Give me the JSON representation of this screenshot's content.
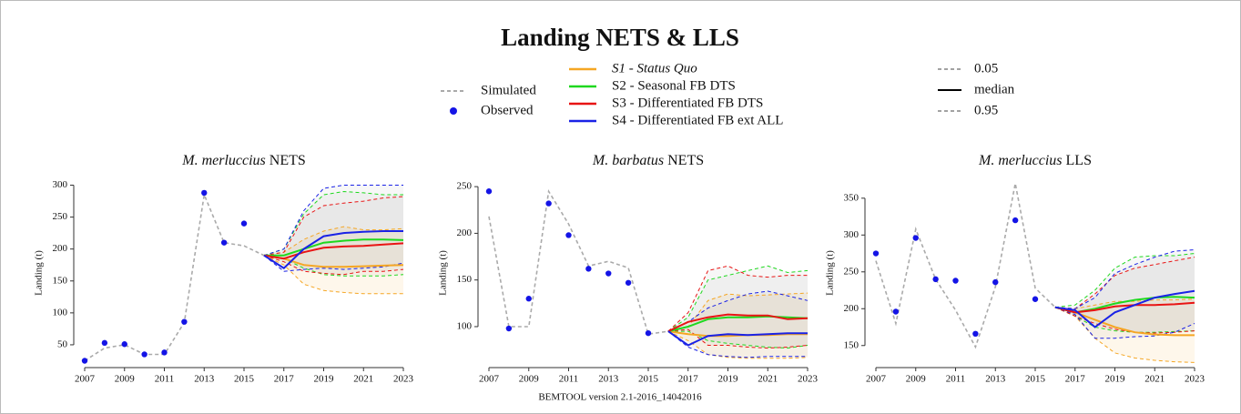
{
  "title": "Landing NETS & LLS",
  "footer": "BEMTOOL version 2.1-2016_14042016",
  "legend": {
    "simulated": "Simulated",
    "simulated_color": "#aaaaaa",
    "observed": "Observed",
    "observed_color": "#1414e6",
    "scenarios": [
      {
        "name": "S1 - Status Quo",
        "color": "#f5a623"
      },
      {
        "name": "S2 - Seasonal FB DTS",
        "color": "#1fd81f"
      },
      {
        "name": "S3 - Differentiated FB DTS",
        "color": "#e81414"
      },
      {
        "name": "S4 - Differentiated FB ext ALL",
        "color": "#1a22e6"
      }
    ],
    "quantiles": [
      "0.05",
      "median",
      "0.95"
    ]
  },
  "chart_data": [
    {
      "type": "line",
      "title": [
        "M. merluccius",
        "NETS"
      ],
      "ylabel": "Landing (t)",
      "x": [
        2007,
        2008,
        2009,
        2010,
        2011,
        2012,
        2013,
        2014,
        2015,
        2016,
        2017,
        2018,
        2019,
        2020,
        2021,
        2022,
        2023
      ],
      "xlim": [
        2007,
        2023
      ],
      "xticks": [
        2007,
        2009,
        2011,
        2013,
        2015,
        2017,
        2019,
        2021,
        2023
      ],
      "ylim": [
        20,
        305
      ],
      "yticks": [
        50,
        100,
        150,
        200,
        250,
        300
      ],
      "simulated": [
        25,
        45,
        50,
        35,
        35,
        85,
        285,
        210,
        205,
        190,
        null,
        null,
        null,
        null,
        null,
        null,
        null
      ],
      "observed": [
        25,
        53,
        51,
        35,
        38,
        86,
        288,
        210,
        240,
        null,
        null,
        null,
        null,
        null,
        null,
        null,
        null
      ],
      "scenarios": [
        {
          "median": [
            null,
            null,
            null,
            null,
            null,
            null,
            null,
            null,
            null,
            190,
            185,
            175,
            172,
            172,
            173,
            174,
            175
          ],
          "low": [
            null,
            null,
            null,
            null,
            null,
            null,
            null,
            null,
            null,
            190,
            175,
            145,
            135,
            132,
            130,
            130,
            130
          ],
          "high": [
            null,
            null,
            null,
            null,
            null,
            null,
            null,
            null,
            null,
            190,
            195,
            215,
            228,
            235,
            230,
            230,
            232
          ]
        },
        {
          "median": [
            null,
            null,
            null,
            null,
            null,
            null,
            null,
            null,
            null,
            190,
            190,
            200,
            210,
            213,
            215,
            215,
            214
          ],
          "low": [
            null,
            null,
            null,
            null,
            null,
            null,
            null,
            null,
            null,
            190,
            185,
            170,
            160,
            158,
            158,
            158,
            160
          ],
          "high": [
            null,
            null,
            null,
            null,
            null,
            null,
            null,
            null,
            null,
            190,
            200,
            255,
            285,
            290,
            288,
            285,
            285
          ]
        },
        {
          "median": [
            null,
            null,
            null,
            null,
            null,
            null,
            null,
            null,
            null,
            190,
            185,
            195,
            202,
            204,
            205,
            207,
            209
          ],
          "low": [
            null,
            null,
            null,
            null,
            null,
            null,
            null,
            null,
            null,
            190,
            180,
            165,
            162,
            160,
            165,
            165,
            168
          ],
          "high": [
            null,
            null,
            null,
            null,
            null,
            null,
            null,
            null,
            null,
            190,
            195,
            250,
            268,
            272,
            275,
            280,
            282
          ]
        },
        {
          "median": [
            null,
            null,
            null,
            null,
            null,
            null,
            null,
            null,
            null,
            190,
            170,
            200,
            220,
            225,
            227,
            228,
            228
          ],
          "low": [
            null,
            null,
            null,
            null,
            null,
            null,
            null,
            null,
            null,
            190,
            165,
            168,
            170,
            168,
            170,
            172,
            178
          ],
          "high": [
            null,
            null,
            null,
            null,
            null,
            null,
            null,
            null,
            null,
            190,
            200,
            260,
            295,
            300,
            300,
            300,
            300
          ]
        }
      ]
    },
    {
      "type": "line",
      "title": [
        "M. barbatus",
        "NETS"
      ],
      "ylabel": "Landing (t)",
      "x": [
        2007,
        2008,
        2009,
        2010,
        2011,
        2012,
        2013,
        2014,
        2015,
        2016,
        2017,
        2018,
        2019,
        2020,
        2021,
        2022,
        2023
      ],
      "xlim": [
        2007,
        2023
      ],
      "xticks": [
        2007,
        2009,
        2011,
        2013,
        2015,
        2017,
        2019,
        2021,
        2023
      ],
      "ylim": [
        60,
        255
      ],
      "yticks": [
        100,
        150,
        200,
        250
      ],
      "simulated": [
        218,
        100,
        100,
        245,
        210,
        165,
        170,
        163,
        92,
        95,
        null,
        null,
        null,
        null,
        null,
        null,
        null
      ],
      "observed": [
        245,
        98,
        130,
        232,
        198,
        162,
        157,
        147,
        93,
        null,
        null,
        null,
        null,
        null,
        null,
        null,
        null
      ],
      "scenarios": [
        {
          "median": [
            null,
            null,
            null,
            null,
            null,
            null,
            null,
            null,
            null,
            95,
            92,
            90,
            90,
            91,
            91,
            92,
            92
          ],
          "low": [
            null,
            null,
            null,
            null,
            null,
            null,
            null,
            null,
            null,
            95,
            85,
            70,
            67,
            66,
            66,
            66,
            67
          ],
          "high": [
            null,
            null,
            null,
            null,
            null,
            null,
            null,
            null,
            null,
            95,
            100,
            128,
            135,
            133,
            134,
            135,
            136
          ]
        },
        {
          "median": [
            null,
            null,
            null,
            null,
            null,
            null,
            null,
            null,
            null,
            95,
            100,
            108,
            110,
            110,
            111,
            110,
            109
          ],
          "low": [
            null,
            null,
            null,
            null,
            null,
            null,
            null,
            null,
            null,
            95,
            95,
            85,
            82,
            80,
            78,
            77,
            80
          ],
          "high": [
            null,
            null,
            null,
            null,
            null,
            null,
            null,
            null,
            null,
            95,
            110,
            150,
            155,
            160,
            165,
            158,
            160
          ]
        },
        {
          "median": [
            null,
            null,
            null,
            null,
            null,
            null,
            null,
            null,
            null,
            95,
            105,
            110,
            113,
            112,
            112,
            108,
            109
          ],
          "low": [
            null,
            null,
            null,
            null,
            null,
            null,
            null,
            null,
            null,
            95,
            97,
            80,
            80,
            78,
            77,
            78,
            80
          ],
          "high": [
            null,
            null,
            null,
            null,
            null,
            null,
            null,
            null,
            null,
            95,
            115,
            160,
            165,
            155,
            153,
            155,
            155
          ]
        },
        {
          "median": [
            null,
            null,
            null,
            null,
            null,
            null,
            null,
            null,
            null,
            95,
            80,
            90,
            92,
            91,
            92,
            93,
            93
          ],
          "low": [
            null,
            null,
            null,
            null,
            null,
            null,
            null,
            null,
            null,
            95,
            78,
            70,
            68,
            67,
            68,
            68,
            68
          ],
          "high": [
            null,
            null,
            null,
            null,
            null,
            null,
            null,
            null,
            null,
            95,
            105,
            120,
            128,
            135,
            138,
            133,
            128
          ]
        }
      ]
    },
    {
      "type": "line",
      "title": [
        "M. merluccius",
        "LLS"
      ],
      "ylabel": "Landing (t)",
      "x": [
        2007,
        2008,
        2009,
        2010,
        2011,
        2012,
        2013,
        2014,
        2015,
        2016,
        2017,
        2018,
        2019,
        2020,
        2021,
        2022,
        2023
      ],
      "xlim": [
        2007,
        2023
      ],
      "xticks": [
        2007,
        2009,
        2011,
        2013,
        2015,
        2017,
        2019,
        2021,
        2023
      ],
      "ylim": [
        125,
        372
      ],
      "yticks": [
        150,
        200,
        250,
        300,
        350
      ],
      "simulated": [
        265,
        180,
        308,
        240,
        198,
        148,
        230,
        370,
        228,
        202,
        null,
        null,
        null,
        null,
        null,
        null,
        null
      ],
      "observed": [
        275,
        196,
        296,
        240,
        238,
        166,
        236,
        320,
        213,
        null,
        null,
        null,
        null,
        null,
        null,
        null,
        null
      ],
      "scenarios": [
        {
          "median": [
            null,
            null,
            null,
            null,
            null,
            null,
            null,
            null,
            null,
            202,
            195,
            185,
            175,
            168,
            165,
            164,
            164
          ],
          "low": [
            null,
            null,
            null,
            null,
            null,
            null,
            null,
            null,
            null,
            202,
            190,
            160,
            140,
            133,
            130,
            128,
            127
          ],
          "high": [
            null,
            null,
            null,
            null,
            null,
            null,
            null,
            null,
            null,
            202,
            200,
            205,
            210,
            210,
            212,
            212,
            213
          ]
        },
        {
          "median": [
            null,
            null,
            null,
            null,
            null,
            null,
            null,
            null,
            null,
            202,
            195,
            200,
            207,
            212,
            215,
            216,
            215
          ],
          "low": [
            null,
            null,
            null,
            null,
            null,
            null,
            null,
            null,
            null,
            202,
            190,
            175,
            170,
            168,
            168,
            169,
            170
          ],
          "high": [
            null,
            null,
            null,
            null,
            null,
            null,
            null,
            null,
            null,
            202,
            205,
            225,
            255,
            270,
            272,
            272,
            275
          ]
        },
        {
          "median": [
            null,
            null,
            null,
            null,
            null,
            null,
            null,
            null,
            null,
            202,
            195,
            198,
            203,
            205,
            205,
            206,
            208
          ],
          "low": [
            null,
            null,
            null,
            null,
            null,
            null,
            null,
            null,
            null,
            202,
            190,
            180,
            172,
            168,
            167,
            168,
            170
          ],
          "high": [
            null,
            null,
            null,
            null,
            null,
            null,
            null,
            null,
            null,
            202,
            200,
            220,
            245,
            255,
            260,
            265,
            270
          ]
        },
        {
          "median": [
            null,
            null,
            null,
            null,
            null,
            null,
            null,
            null,
            null,
            202,
            198,
            175,
            195,
            205,
            215,
            220,
            224
          ],
          "low": [
            null,
            null,
            null,
            null,
            null,
            null,
            null,
            null,
            null,
            202,
            192,
            160,
            160,
            162,
            163,
            168,
            180
          ],
          "high": [
            null,
            null,
            null,
            null,
            null,
            null,
            null,
            null,
            null,
            202,
            200,
            215,
            248,
            260,
            270,
            278,
            280
          ]
        }
      ]
    }
  ]
}
